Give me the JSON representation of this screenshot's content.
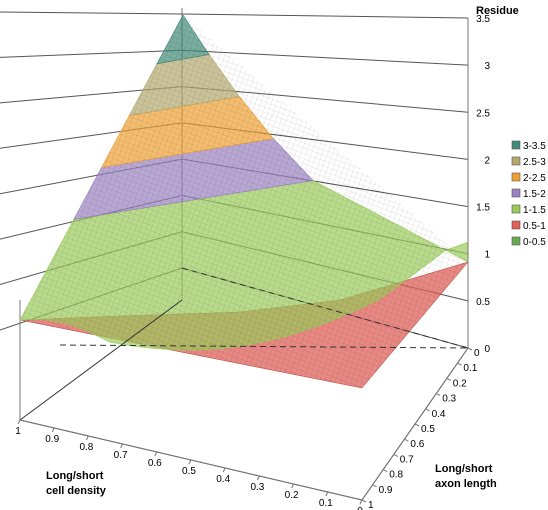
{
  "chart_data": {
    "type": "surface-3d",
    "title": "",
    "z_axis_title": "Residue",
    "x_axis_title_line1": "Long/short",
    "x_axis_title_line2": "cell density",
    "y_axis_title_line1": "Long/short",
    "y_axis_title_line2": "axon length",
    "x_tick_labels": [
      "1",
      "0.9",
      "0.8",
      "0.7",
      "0.6",
      "0.5",
      "0.4",
      "0.3",
      "0.2",
      "0.1",
      "0"
    ],
    "y_tick_labels": [
      "0",
      "0.1",
      "0.2",
      "0.3",
      "0.4",
      "0.5",
      "0.6",
      "0.7",
      "0.8",
      "0.9",
      "1"
    ],
    "z_tick_labels": [
      "0",
      "0.5",
      "1",
      "1.5",
      "2",
      "2.5",
      "3",
      "3.5"
    ],
    "zlim": [
      0,
      3.5
    ],
    "grid": true,
    "legend_position": "right",
    "legend": [
      {
        "label": "3-3.5",
        "color": "#3f8a78",
        "range": [
          3,
          3.5
        ]
      },
      {
        "label": "2.5-3",
        "color": "#b3a86e",
        "range": [
          2.5,
          3
        ]
      },
      {
        "label": "2-2.5",
        "color": "#f0a030",
        "range": [
          2,
          2.5
        ]
      },
      {
        "label": "1.5-2",
        "color": "#9a82c0",
        "range": [
          1.5,
          2
        ]
      },
      {
        "label": "1-1.5",
        "color": "#9acb5a",
        "range": [
          1,
          1.5
        ]
      },
      {
        "label": "0.5-1",
        "color": "#e0605a",
        "range": [
          0.5,
          1
        ]
      },
      {
        "label": "0-0.5",
        "color": "#6aa84f",
        "range": [
          0,
          0.5
        ]
      }
    ],
    "surface_corner_values": {
      "density_1_axon_0": 0.5,
      "density_1_axon_1": 0.5,
      "density_0_axon_0": 1,
      "density_0_axon_1": 3.5
    }
  }
}
